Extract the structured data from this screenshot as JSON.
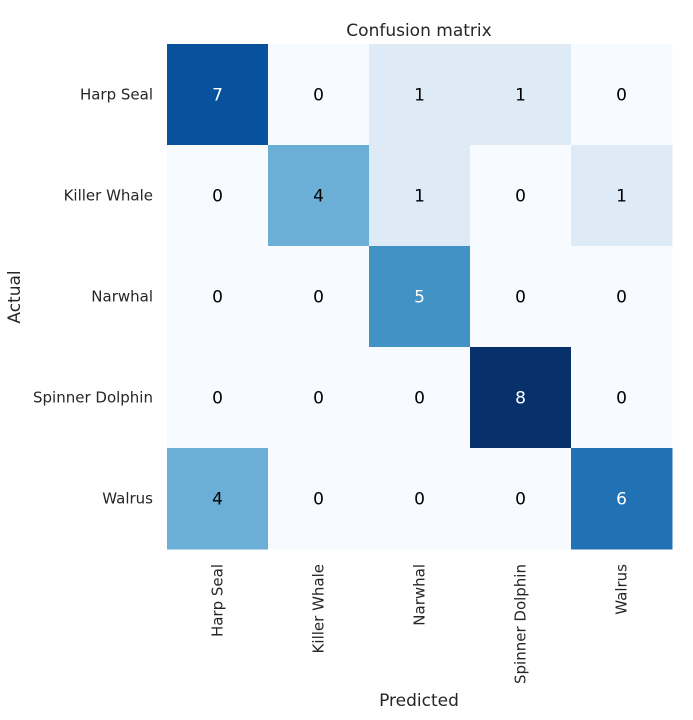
{
  "chart_data": {
    "type": "heatmap",
    "title": "Confusion matrix",
    "xlabel": "Predicted",
    "ylabel": "Actual",
    "x_categories": [
      "Harp Seal",
      "Killer Whale",
      "Narwhal",
      "Spinner Dolphin",
      "Walrus"
    ],
    "y_categories": [
      "Harp Seal",
      "Killer Whale",
      "Narwhal",
      "Spinner Dolphin",
      "Walrus"
    ],
    "values": [
      [
        7,
        0,
        1,
        1,
        0
      ],
      [
        0,
        4,
        1,
        0,
        1
      ],
      [
        0,
        0,
        5,
        0,
        0
      ],
      [
        0,
        0,
        0,
        8,
        0
      ],
      [
        4,
        0,
        0,
        0,
        6
      ]
    ],
    "colormap": "Blues",
    "value_range": [
      0,
      8
    ],
    "colorbar": false,
    "annotations": true
  }
}
